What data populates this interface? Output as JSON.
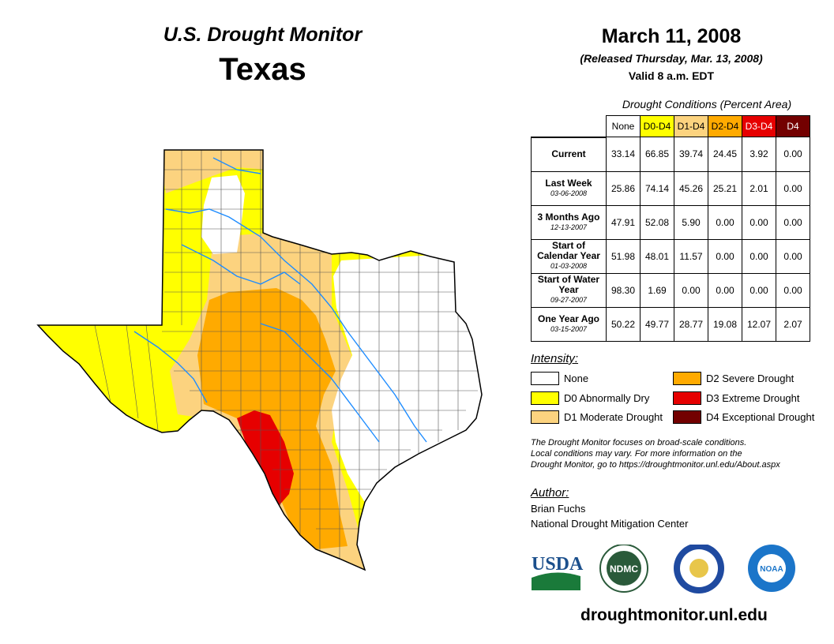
{
  "header": {
    "title": "U.S. Drought Monitor",
    "state": "Texas",
    "date": "March 11, 2008",
    "released": "(Released Thursday, Mar. 13, 2008)",
    "valid": "Valid 8 a.m. EDT"
  },
  "table": {
    "caption": "Drought Conditions (Percent Area)",
    "columns": [
      {
        "label": "None",
        "color": "#ffffff",
        "text": "#000"
      },
      {
        "label": "D0-D4",
        "color": "#ffff00",
        "text": "#000"
      },
      {
        "label": "D1-D4",
        "color": "#fcd37f",
        "text": "#000"
      },
      {
        "label": "D2-D4",
        "color": "#ffaa00",
        "text": "#000"
      },
      {
        "label": "D3-D4",
        "color": "#e60000",
        "text": "#fff"
      },
      {
        "label": "D4",
        "color": "#730000",
        "text": "#fff"
      }
    ],
    "rows": [
      {
        "label": "Current",
        "date": "",
        "values": [
          "33.14",
          "66.85",
          "39.74",
          "24.45",
          "3.92",
          "0.00"
        ]
      },
      {
        "label": "Last Week",
        "date": "03-06-2008",
        "values": [
          "25.86",
          "74.14",
          "45.26",
          "25.21",
          "2.01",
          "0.00"
        ]
      },
      {
        "label": "3 Months Ago",
        "date": "12-13-2007",
        "values": [
          "47.91",
          "52.08",
          "5.90",
          "0.00",
          "0.00",
          "0.00"
        ]
      },
      {
        "label": "Start of Calendar Year",
        "date": "01-03-2008",
        "values": [
          "51.98",
          "48.01",
          "11.57",
          "0.00",
          "0.00",
          "0.00"
        ]
      },
      {
        "label": "Start of Water Year",
        "date": "09-27-2007",
        "values": [
          "98.30",
          "1.69",
          "0.00",
          "0.00",
          "0.00",
          "0.00"
        ]
      },
      {
        "label": "One Year Ago",
        "date": "03-15-2007",
        "values": [
          "50.22",
          "49.77",
          "28.77",
          "19.08",
          "12.07",
          "2.07"
        ]
      }
    ]
  },
  "legend": {
    "title": "Intensity:",
    "items": [
      {
        "label": "None",
        "color": "#ffffff"
      },
      {
        "label": "D0 Abnormally Dry",
        "color": "#ffff00"
      },
      {
        "label": "D1 Moderate Drought",
        "color": "#fcd37f"
      },
      {
        "label": "D2 Severe Drought",
        "color": "#ffaa00"
      },
      {
        "label": "D3 Extreme Drought",
        "color": "#e60000"
      },
      {
        "label": "D4 Exceptional Drought",
        "color": "#730000"
      }
    ]
  },
  "note": [
    "The Drought Monitor focuses on broad-scale conditions.",
    "Local conditions may vary. For more information on the",
    "Drought Monitor, go to https://droughtmonitor.unl.edu/About.aspx"
  ],
  "author": {
    "title": "Author:",
    "name": "Brian Fuchs",
    "org": "National Drought Mitigation Center"
  },
  "logos": {
    "usda": "USDA",
    "ndmc": "NDMC",
    "noaa": "NOAA"
  },
  "url": "droughtmonitor.unl.edu"
}
